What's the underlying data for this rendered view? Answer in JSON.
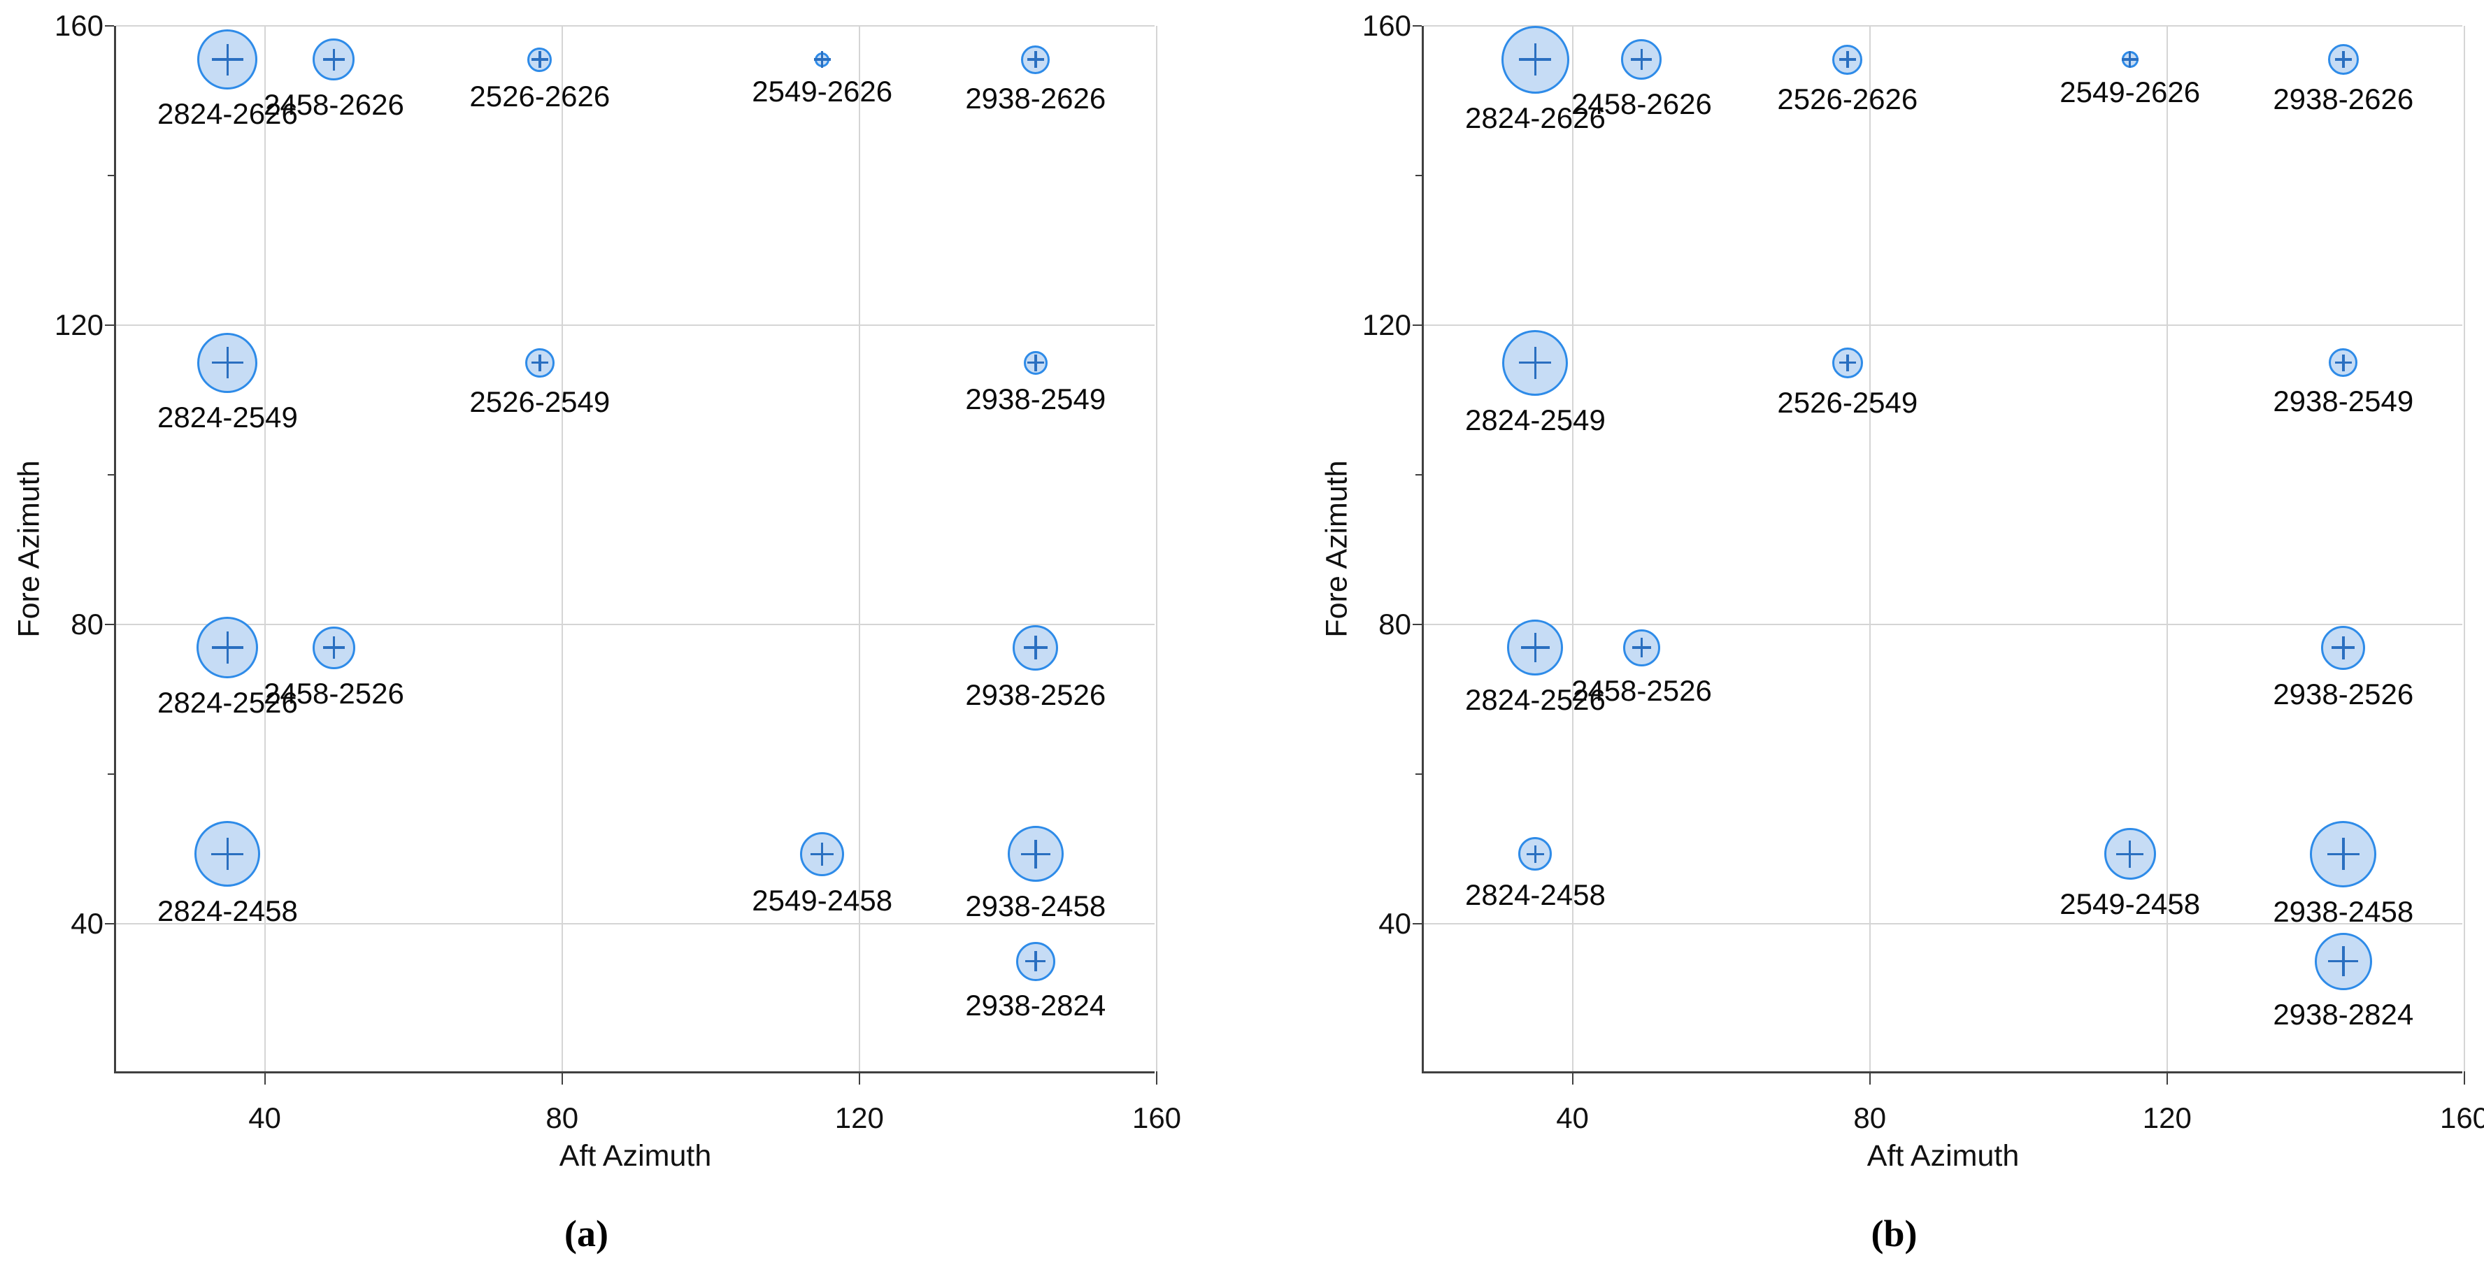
{
  "figure": {
    "background": "#ffffff"
  },
  "style": {
    "bubble_fill": "#c6dcf5",
    "bubble_stroke": "#2e8be8",
    "plus_color": "#2a6fc0",
    "grid_color": "#d5d5d5",
    "axis_color": "#404040",
    "text_color": "#111111"
  },
  "chart_data": [
    {
      "id": "a",
      "type": "scatter",
      "caption": "(a)",
      "xlabel": "Aft Azimuth",
      "ylabel": "Fore Azimuth",
      "xlim": [
        20,
        160
      ],
      "ylim": [
        20,
        160
      ],
      "xticks": [
        40,
        80,
        120,
        160
      ],
      "yticks": [
        40,
        80,
        120,
        160
      ],
      "minor_yticks": [
        60,
        100,
        140
      ],
      "grid": true,
      "legend": "none",
      "points": [
        {
          "label": "2824-2626",
          "x": 35.0,
          "y": 155.5,
          "d": 86
        },
        {
          "label": "2458-2626",
          "x": 49.3,
          "y": 155.5,
          "d": 60
        },
        {
          "label": "2526-2626",
          "x": 77.0,
          "y": 155.5,
          "d": 35
        },
        {
          "label": "2549-2626",
          "x": 115.0,
          "y": 155.5,
          "d": 21
        },
        {
          "label": "2938-2626",
          "x": 143.7,
          "y": 155.5,
          "d": 41
        },
        {
          "label": "2824-2549",
          "x": 35.0,
          "y": 115.0,
          "d": 86
        },
        {
          "label": "2526-2549",
          "x": 77.0,
          "y": 115.0,
          "d": 42
        },
        {
          "label": "2938-2549",
          "x": 143.7,
          "y": 115.0,
          "d": 34
        },
        {
          "label": "2824-2526",
          "x": 35.0,
          "y": 76.9,
          "d": 88
        },
        {
          "label": "2458-2526",
          "x": 49.3,
          "y": 76.9,
          "d": 61
        },
        {
          "label": "2938-2526",
          "x": 143.7,
          "y": 76.9,
          "d": 65
        },
        {
          "label": "2824-2458",
          "x": 35.0,
          "y": 49.3,
          "d": 94
        },
        {
          "label": "2549-2458",
          "x": 115.0,
          "y": 49.3,
          "d": 63
        },
        {
          "label": "2938-2458",
          "x": 143.7,
          "y": 49.3,
          "d": 80
        },
        {
          "label": "2938-2824",
          "x": 143.7,
          "y": 35.0,
          "d": 56
        }
      ]
    },
    {
      "id": "b",
      "type": "scatter",
      "caption": "(b)",
      "xlabel": "Aft Azimuth",
      "ylabel": "Fore Azimuth",
      "xlim": [
        20,
        160
      ],
      "ylim": [
        20,
        160
      ],
      "xticks": [
        40,
        80,
        120,
        160
      ],
      "yticks": [
        40,
        80,
        120,
        160
      ],
      "minor_yticks": [
        60,
        100,
        140
      ],
      "grid": true,
      "legend": "none",
      "points": [
        {
          "label": "2824-2626",
          "x": 35.0,
          "y": 155.5,
          "d": 97
        },
        {
          "label": "2458-2626",
          "x": 49.3,
          "y": 155.5,
          "d": 58
        },
        {
          "label": "2526-2626",
          "x": 77.0,
          "y": 155.5,
          "d": 43
        },
        {
          "label": "2549-2626",
          "x": 115.0,
          "y": 155.5,
          "d": 24
        },
        {
          "label": "2938-2626",
          "x": 143.7,
          "y": 155.5,
          "d": 44
        },
        {
          "label": "2824-2549",
          "x": 35.0,
          "y": 115.0,
          "d": 94
        },
        {
          "label": "2526-2549",
          "x": 77.0,
          "y": 115.0,
          "d": 44
        },
        {
          "label": "2938-2549",
          "x": 143.7,
          "y": 115.0,
          "d": 41
        },
        {
          "label": "2824-2526",
          "x": 35.0,
          "y": 76.9,
          "d": 80
        },
        {
          "label": "2458-2526",
          "x": 49.3,
          "y": 76.9,
          "d": 53
        },
        {
          "label": "2938-2526",
          "x": 143.7,
          "y": 76.9,
          "d": 63
        },
        {
          "label": "2824-2458",
          "x": 35.0,
          "y": 49.3,
          "d": 48
        },
        {
          "label": "2549-2458",
          "x": 115.0,
          "y": 49.3,
          "d": 74
        },
        {
          "label": "2938-2458",
          "x": 143.7,
          "y": 49.3,
          "d": 95
        },
        {
          "label": "2938-2824",
          "x": 143.7,
          "y": 35.0,
          "d": 82
        }
      ]
    }
  ]
}
